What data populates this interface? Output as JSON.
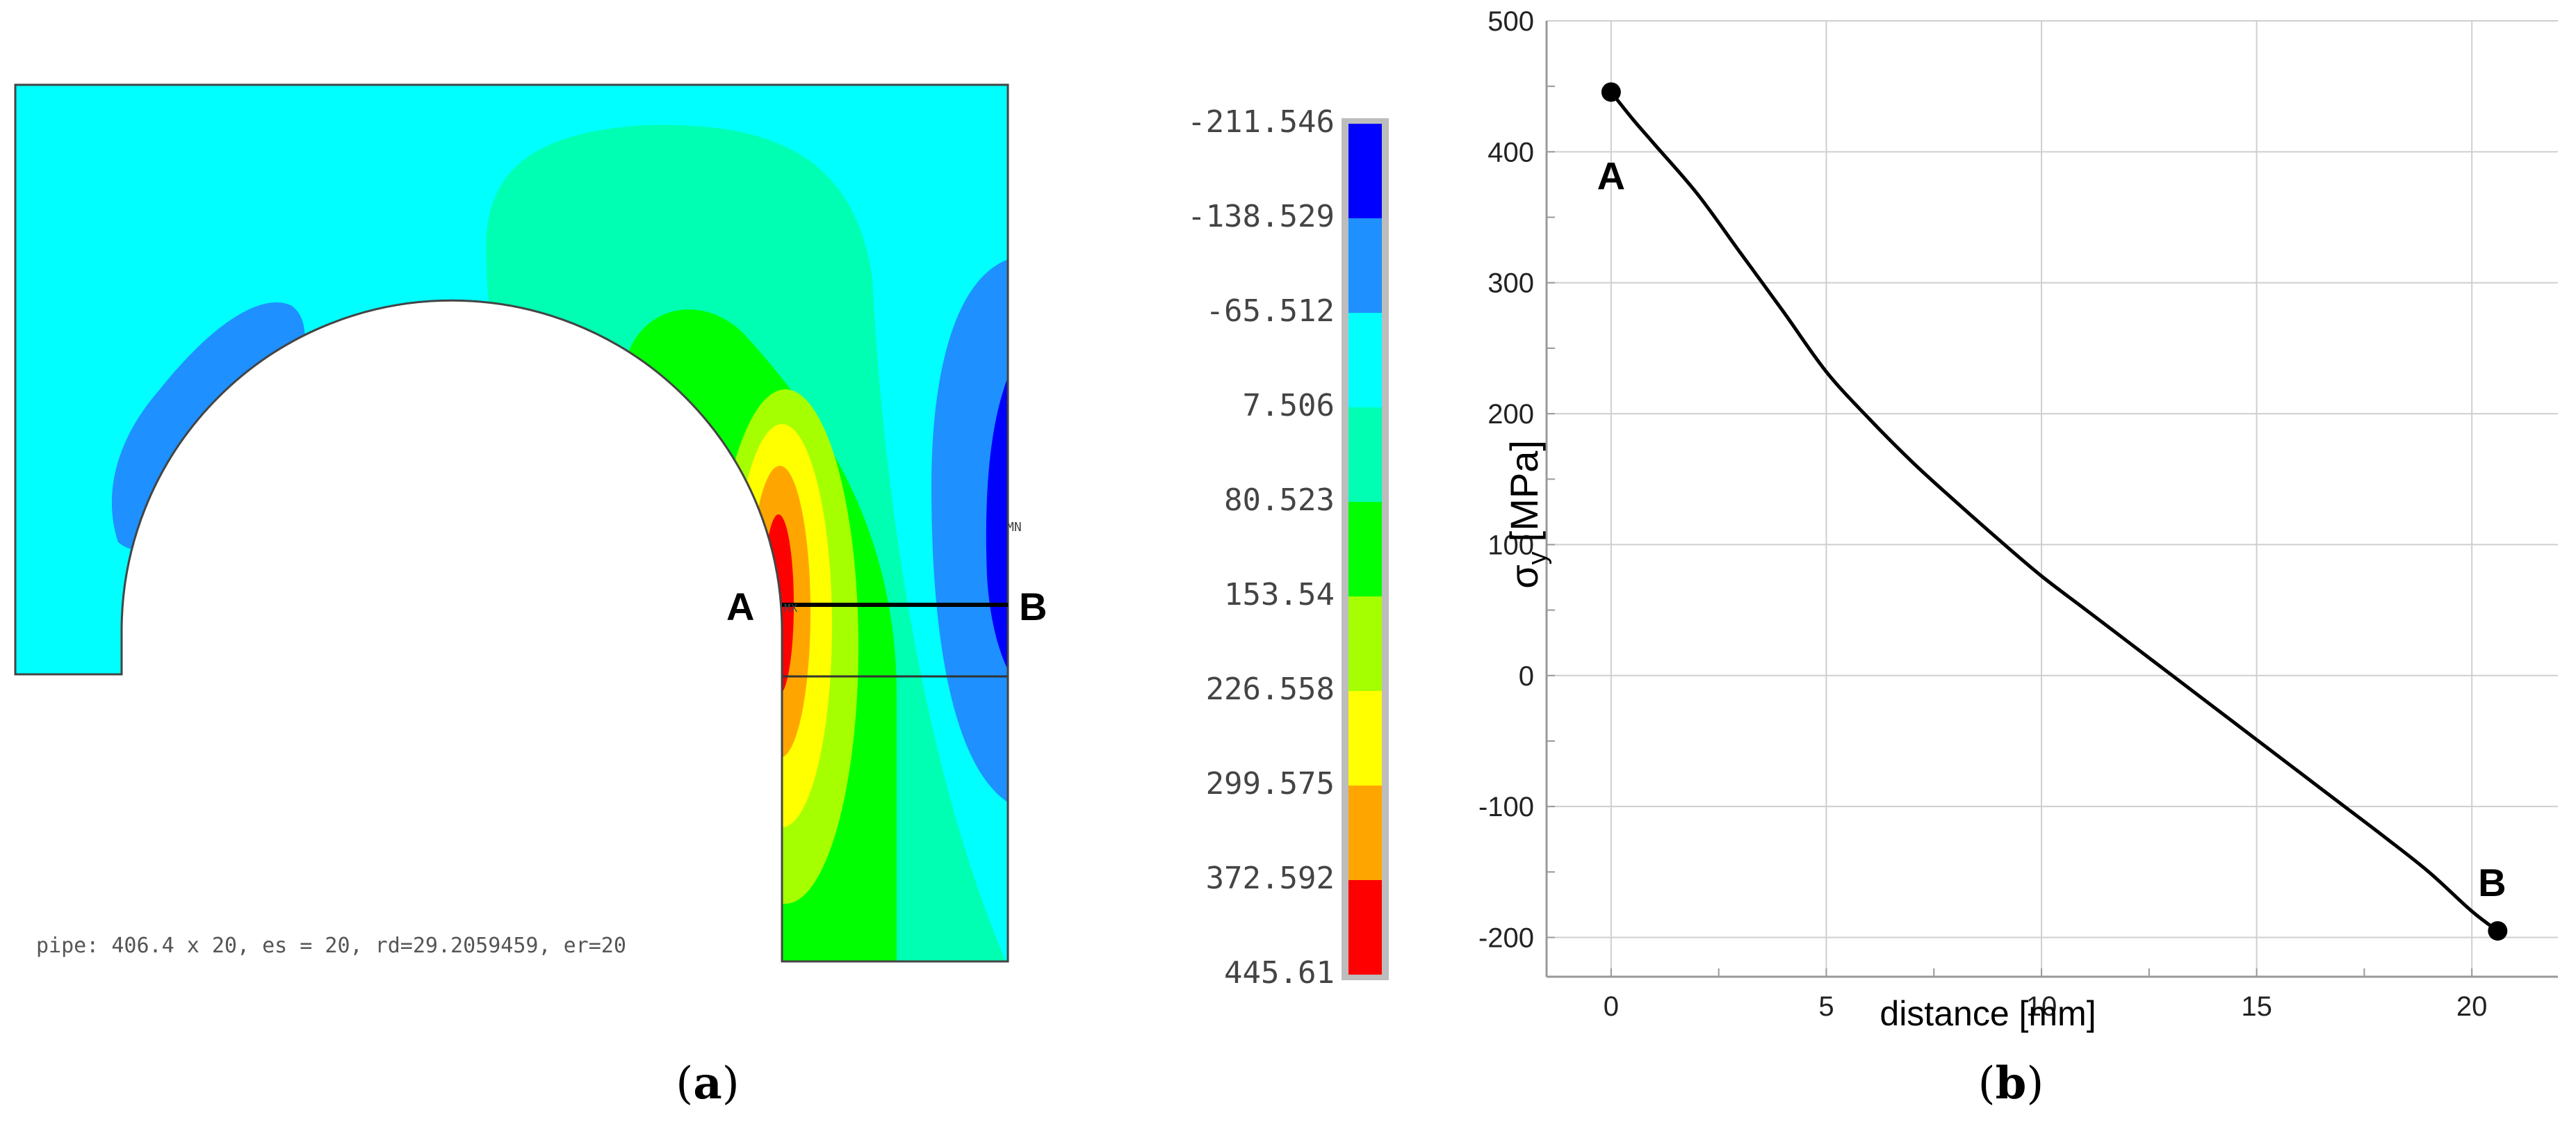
{
  "panel_a": {
    "caption": "(a)",
    "caption_letter": "a",
    "point_a_label": "A",
    "point_b_label": "B",
    "node_mx_label": "MX",
    "node_mn_label": "MN",
    "footer_text": "pipe: 406.4 x 20, es = 20, rd=29.2059459, er=20",
    "colorbar": {
      "labels": [
        "-211.546",
        "-138.529",
        "-65.512",
        "7.506",
        "80.523",
        "153.54",
        "226.558",
        "299.575",
        "372.592",
        "445.61"
      ],
      "colors": [
        "#0000ff",
        "#1e90ff",
        "#00ffff",
        "#00ffb2",
        "#00ff00",
        "#a6ff00",
        "#ffff00",
        "#ffa500",
        "#ff0000"
      ]
    },
    "contour_colors": {
      "blue_dark": "#0000ff",
      "blue_mid": "#1e90ff",
      "cyan": "#00ffff",
      "aqua_green": "#00ffb2",
      "green": "#00ff00",
      "yellow_green": "#a6ff00",
      "yellow": "#ffff00",
      "orange": "#ffa500",
      "red": "#ff0000"
    }
  },
  "panel_b": {
    "caption": "(b)",
    "caption_letter": "b"
  },
  "chart_data": {
    "type": "line",
    "xlabel": "distance [mm]",
    "ylabel_main": "σ",
    "ylabel_sub": "y",
    "ylabel_unit": "[MPa]",
    "xlim": [
      -1.5,
      22
    ],
    "ylim": [
      -230,
      500
    ],
    "xticks": [
      0,
      5,
      10,
      15,
      20
    ],
    "yticks": [
      -200,
      -100,
      0,
      100,
      200,
      300,
      400,
      500
    ],
    "grid": true,
    "series": [
      {
        "x": [
          0,
          0.5,
          1,
          2,
          3,
          4,
          5,
          6,
          7,
          8,
          9,
          10,
          11,
          12,
          13,
          14,
          15,
          16,
          17,
          18,
          19,
          20,
          20.6
        ],
        "y": [
          445.6,
          425,
          406,
          368,
          323,
          278,
          232,
          196,
          163,
          133,
          104,
          76,
          51,
          26,
          1,
          -24,
          -49,
          -74,
          -99,
          -124,
          -150,
          -180,
          -195
        ]
      }
    ],
    "annotations": [
      {
        "text": "A",
        "x": 0,
        "y": 445.6
      },
      {
        "text": "B",
        "x": 20.6,
        "y": -195
      }
    ]
  }
}
